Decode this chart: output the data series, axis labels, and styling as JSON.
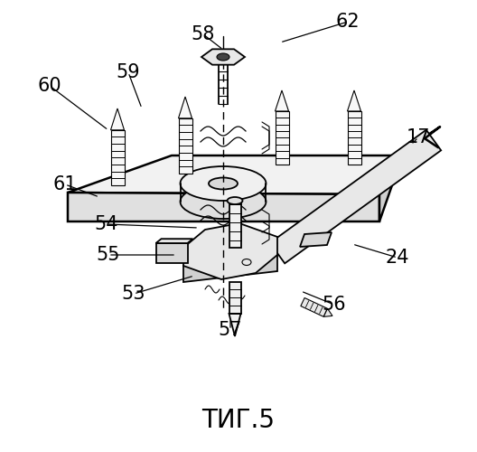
{
  "title": "ΤИГ.5",
  "title_fontsize": 20,
  "bg_color": "#ffffff",
  "line_color": "#000000",
  "fig_width": 5.28,
  "fig_height": 5.0,
  "dpi": 100
}
